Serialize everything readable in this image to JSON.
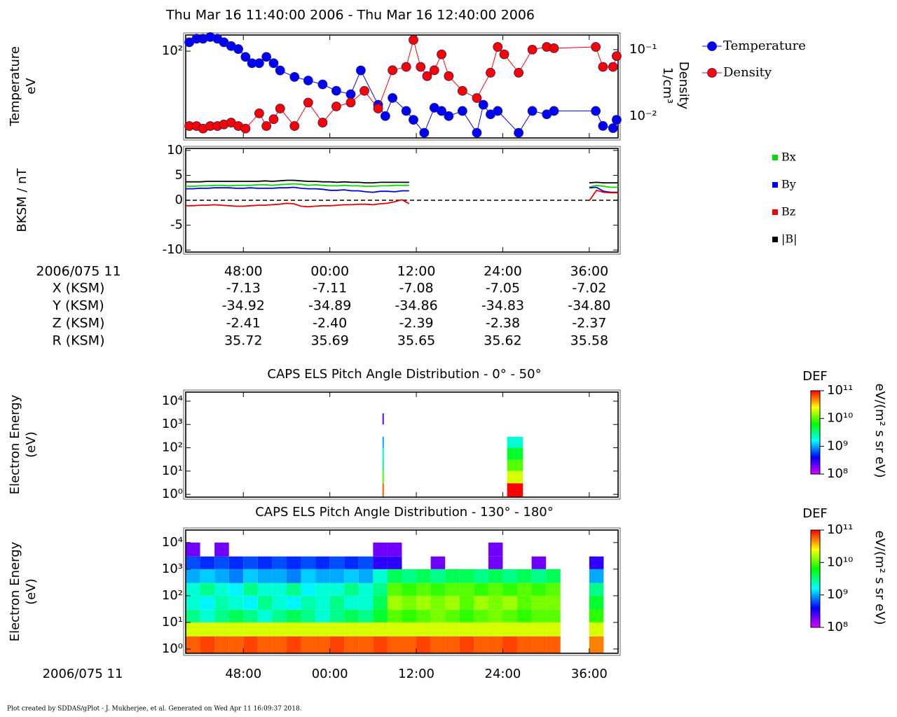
{
  "title": "Thu Mar 16 11:40:00 2006 - Thu Mar 16 12:40:00 2006",
  "footer": "Plot created by SDDAS/gPlot - J. Mukherjee, et al.  Generated on Wed Apr 11 16:09:37 2018.",
  "ephemeris": {
    "time_label": "2006/075 11",
    "times": [
      "48:00",
      "00:00",
      "12:00",
      "24:00",
      "36:00"
    ],
    "rows": [
      {
        "label": "X (KSM)",
        "values": [
          "-7.13",
          "-7.11",
          "-7.08",
          "-7.05",
          "-7.02"
        ]
      },
      {
        "label": "Y (KSM)",
        "values": [
          "-34.92",
          "-34.89",
          "-34.86",
          "-34.83",
          "-34.80"
        ]
      },
      {
        "label": "Z (KSM)",
        "values": [
          "-2.41",
          "-2.40",
          "-2.39",
          "-2.38",
          "-2.37"
        ]
      },
      {
        "label": "R (KSM)",
        "values": [
          "35.72",
          "35.69",
          "35.65",
          "35.62",
          "35.58"
        ]
      }
    ]
  },
  "chart_data": [
    {
      "type": "line",
      "markers": true,
      "ylabel": "Temperature",
      "yunit": "eV",
      "y2label": "Density",
      "y2unit": "1/cm³",
      "xlim": [
        0,
        60
      ],
      "xticks": [
        8,
        20,
        32,
        44,
        56
      ],
      "ylim": [
        20,
        135
      ],
      "log_y": true,
      "yticks": [
        {
          "value": 100,
          "label": "10²"
        }
      ],
      "y2lim": [
        0.0047,
        0.166
      ],
      "log_y2": true,
      "y2ticks": [
        {
          "value": 0.1,
          "label": "10⁻¹"
        },
        {
          "value": 0.01,
          "label": "10⁻²"
        }
      ],
      "series": [
        {
          "name": "Temperature",
          "color": "#0000ff",
          "x": [
            0.5,
            1.5,
            2.4,
            3.4,
            4.4,
            5.3,
            6.3,
            7.3,
            8.3,
            9.2,
            10.2,
            11.2,
            12.2,
            13.1,
            15.1,
            17.0,
            19.0,
            20.9,
            22.9,
            24.3,
            26.7,
            27.7,
            28.7,
            30.6,
            31.6,
            33.1,
            34.5,
            35.5,
            36.5,
            38.4,
            40.4,
            41.3,
            42.3,
            43.3,
            46.2,
            48.1,
            50.1,
            51.1,
            56.9,
            57.9,
            59.3,
            59.8
          ],
          "values": [
            118,
            126,
            126,
            130,
            126,
            118,
            110,
            104,
            90,
            80,
            80,
            90,
            80,
            70,
            62,
            58,
            54,
            48,
            45,
            70,
            37,
            30,
            42,
            33,
            28,
            22,
            35,
            33,
            30,
            33,
            22,
            37,
            31,
            33,
            22,
            33,
            31,
            33,
            33,
            25,
            24,
            28
          ]
        },
        {
          "name": "Density",
          "color": "#ff0000",
          "axis": "y2",
          "x": [
            0.5,
            1.5,
            2.4,
            3.4,
            4.4,
            5.3,
            6.3,
            7.3,
            8.3,
            10.2,
            11.2,
            12.2,
            13.1,
            15.1,
            17.0,
            19.0,
            20.9,
            22.9,
            24.8,
            26.7,
            28.7,
            30.6,
            31.6,
            32.6,
            33.5,
            34.5,
            35.5,
            36.5,
            38.4,
            40.4,
            42.3,
            43.3,
            44.2,
            46.2,
            48.1,
            50.1,
            51.1,
            56.9,
            57.9,
            59.3,
            59.8
          ],
          "values": [
            0.0071,
            0.0071,
            0.0065,
            0.0071,
            0.0071,
            0.0075,
            0.008,
            0.0071,
            0.0065,
            0.011,
            0.0071,
            0.009,
            0.013,
            0.0071,
            0.016,
            0.008,
            0.014,
            0.016,
            0.024,
            0.013,
            0.049,
            0.055,
            0.14,
            0.055,
            0.04,
            0.049,
            0.085,
            0.04,
            0.024,
            0.0187,
            0.045,
            0.11,
            0.085,
            0.045,
            0.1,
            0.11,
            0.105,
            0.11,
            0.055,
            0.055,
            0.08
          ]
        }
      ]
    },
    {
      "type": "line",
      "ylabel": "BKSM / nT",
      "zero_line": true,
      "xlim": [
        0,
        60
      ],
      "xticks": [
        8,
        20,
        32,
        44,
        56
      ],
      "ylim": [
        -10.4,
        10.4
      ],
      "yticks": [
        10,
        5,
        0,
        -5,
        -10
      ],
      "x": [
        0,
        1,
        2,
        3,
        4,
        5,
        6,
        7,
        8,
        9,
        10,
        11,
        12,
        13,
        14,
        15,
        16,
        17,
        18,
        19,
        20,
        21,
        22,
        23,
        24,
        25,
        26,
        27,
        28,
        29,
        30,
        31,
        44,
        56,
        57,
        58,
        59,
        60
      ],
      "series": [
        {
          "name": "Bx",
          "color": "#00dd00",
          "values": [
            2.8,
            2.8,
            2.9,
            2.9,
            3.0,
            3.0,
            2.9,
            3.0,
            3.0,
            3.0,
            3.1,
            3.1,
            3.0,
            3.1,
            3.2,
            3.3,
            3.2,
            3.0,
            3.1,
            3.0,
            2.9,
            2.9,
            3.0,
            2.9,
            2.9,
            2.8,
            2.8,
            2.9,
            2.9,
            3.0,
            3.0,
            3.0,
            null,
            2.6,
            3.0,
            2.8,
            2.6,
            2.6
          ]
        },
        {
          "name": "By",
          "color": "#0000ee",
          "values": [
            2.3,
            2.3,
            2.4,
            2.4,
            2.5,
            2.5,
            2.5,
            2.4,
            2.4,
            2.5,
            2.4,
            2.4,
            2.4,
            2.5,
            2.5,
            2.6,
            2.4,
            2.3,
            2.3,
            2.2,
            2.0,
            2.0,
            2.1,
            1.9,
            1.9,
            1.7,
            1.6,
            1.8,
            1.8,
            1.7,
            1.9,
            1.9,
            null,
            2.5,
            2.6,
            1.8,
            1.6,
            1.6
          ]
        },
        {
          "name": "Bz",
          "color": "#ee0000",
          "values": [
            -1.1,
            -1.1,
            -1.0,
            -1.0,
            -0.9,
            -1.0,
            -1.1,
            -1.2,
            -1.2,
            -1.1,
            -1.0,
            -1.0,
            -0.9,
            -0.8,
            -0.6,
            -0.7,
            -1.2,
            -1.3,
            -1.2,
            -1.1,
            -1.1,
            -1.0,
            -0.9,
            -0.9,
            -0.8,
            -0.8,
            -0.9,
            -0.7,
            -0.6,
            -0.3,
            0.1,
            -0.7,
            null,
            -0.1,
            2.0,
            1.6,
            1.5,
            1.5
          ]
        },
        {
          "name": "|B|",
          "color": "#000000",
          "values": [
            3.7,
            3.7,
            3.7,
            3.8,
            3.8,
            3.8,
            3.8,
            3.8,
            3.8,
            3.8,
            3.8,
            3.9,
            3.8,
            3.9,
            4.0,
            4.0,
            3.9,
            3.8,
            3.8,
            3.7,
            3.7,
            3.6,
            3.7,
            3.6,
            3.6,
            3.5,
            3.5,
            3.6,
            3.6,
            3.6,
            3.6,
            3.6,
            null,
            3.5,
            3.6,
            3.5,
            3.5,
            3.5
          ]
        }
      ]
    },
    {
      "type": "heatmap",
      "title": "CAPS ELS Pitch Angle Distribution - 0° - 50°",
      "ylabel": "Electron Energy",
      "yunit": "(eV)",
      "clabel": "DEF",
      "cunit": "eV/(m² s sr eV)",
      "xlim": [
        0,
        60
      ],
      "xticks": [
        8,
        20,
        32,
        44,
        56
      ],
      "ylim": [
        0.76,
        24500
      ],
      "log_y": true,
      "yticks": [
        {
          "value": 1,
          "label": "10⁰"
        },
        {
          "value": 10,
          "label": "10¹"
        },
        {
          "value": 100,
          "label": "10²"
        },
        {
          "value": 1000,
          "label": "10³"
        },
        {
          "value": 10000,
          "label": "10⁴"
        }
      ],
      "clim": [
        100000000.0,
        100000000000.0
      ],
      "cticks": [
        {
          "value": 100000000000.0,
          "label": "10¹¹"
        },
        {
          "value": 10000000000.0,
          "label": "10¹⁰"
        },
        {
          "value": 1000000000.0,
          "label": "10⁹"
        },
        {
          "value": 100000000.0,
          "label": "10⁸"
        }
      ],
      "colormap": [
        "#e000ff",
        "#0000ff",
        "#00ffff",
        "#00ff00",
        "#ffff00",
        "#ff0000"
      ],
      "time_bins": [
        27.3,
        27.5,
        44.6,
        46.8
      ],
      "energy_bins": [
        0.7,
        3,
        10,
        30,
        100,
        300,
        1000,
        3000,
        10000
      ],
      "z": [
        [
          60000000000.0,
          null,
          100000000000.0
        ],
        [
          10000000000.0,
          null,
          20000000000.0
        ],
        [
          3000000000.0,
          null,
          10000000000.0
        ],
        [
          2000000000.0,
          null,
          5000000000.0
        ],
        [
          1000000000.0,
          null,
          2000000000.0
        ],
        [
          null,
          null,
          null
        ],
        [
          200000000.0,
          null,
          null
        ],
        [
          null,
          null,
          null
        ]
      ]
    },
    {
      "type": "heatmap",
      "title": "CAPS ELS Pitch Angle Distribution - 130° - 180°",
      "ylabel": "Electron Energy",
      "yunit": "(eV)",
      "clabel": "DEF",
      "cunit": "eV/(m² s sr eV)",
      "xlabel": "2006/075 11",
      "xlim": [
        0,
        60
      ],
      "xticks": [
        {
          "value": 8,
          "label": "48:00"
        },
        {
          "value": 20,
          "label": "00:00"
        },
        {
          "value": 32,
          "label": "12:00"
        },
        {
          "value": 44,
          "label": "24:00"
        },
        {
          "value": 56,
          "label": "36:00"
        }
      ],
      "ylim": [
        0.69,
        29500
      ],
      "log_y": true,
      "yticks": [
        {
          "value": 1,
          "label": "10⁰"
        },
        {
          "value": 10,
          "label": "10¹"
        },
        {
          "value": 100,
          "label": "10²"
        },
        {
          "value": 1000,
          "label": "10³"
        },
        {
          "value": 10000,
          "label": "10⁴"
        }
      ],
      "clim": [
        100000000.0,
        100000000000.0
      ],
      "cticks": [
        {
          "value": 100000000000.0,
          "label": "10¹¹"
        },
        {
          "value": 10000000000.0,
          "label": "10¹⁰"
        },
        {
          "value": 1000000000.0,
          "label": "10⁹"
        },
        {
          "value": 100000000.0,
          "label": "10⁸"
        }
      ],
      "colormap": [
        "#e000ff",
        "#0000ff",
        "#00ffff",
        "#00ff00",
        "#ffff00",
        "#ff0000"
      ],
      "time_bins": [
        0,
        2,
        4,
        6,
        8,
        10,
        12,
        14,
        16,
        18,
        20,
        22,
        24,
        26,
        28,
        30,
        32,
        34,
        36,
        38,
        40,
        42,
        44,
        46,
        48,
        50,
        52,
        54,
        56,
        58,
        60
      ],
      "energy_bins": [
        0.7,
        3,
        10,
        30,
        100,
        300,
        1000,
        3000,
        10000
      ],
      "z": [
        [
          60000000000.0,
          70000000000.0,
          60000000000.0,
          60000000000.0,
          70000000000.0,
          60000000000.0,
          60000000000.0,
          70000000000.0,
          60000000000.0,
          60000000000.0,
          70000000000.0,
          60000000000.0,
          60000000000.0,
          70000000000.0,
          60000000000.0,
          60000000000.0,
          70000000000.0,
          60000000000.0,
          60000000000.0,
          70000000000.0,
          60000000000.0,
          60000000000.0,
          70000000000.0,
          60000000000.0,
          60000000000.0,
          60000000000.0,
          null,
          null,
          50000000000.0,
          null
        ],
        [
          20000000000.0,
          20000000000.0,
          20000000000.0,
          20000000000.0,
          20000000000.0,
          20000000000.0,
          20000000000.0,
          20000000000.0,
          20000000000.0,
          20000000000.0,
          20000000000.0,
          20000000000.0,
          20000000000.0,
          20000000000.0,
          20000000000.0,
          20000000000.0,
          20000000000.0,
          20000000000.0,
          20000000000.0,
          20000000000.0,
          20000000000.0,
          20000000000.0,
          20000000000.0,
          20000000000.0,
          20000000000.0,
          20000000000.0,
          null,
          null,
          20000000000.0,
          null
        ],
        [
          3000000000.0,
          2000000000.0,
          3000000000.0,
          4000000000.0,
          3000000000.0,
          2000000000.0,
          3000000000.0,
          4000000000.0,
          3000000000.0,
          2000000000.0,
          3000000000.0,
          4000000000.0,
          3000000000.0,
          5000000000.0,
          10000000000.0,
          8000000000.0,
          10000000000.0,
          12000000000.0,
          10000000000.0,
          8000000000.0,
          10000000000.0,
          12000000000.0,
          10000000000.0,
          8000000000.0,
          10000000000.0,
          10000000000.0,
          null,
          null,
          8000000000.0,
          null
        ],
        [
          2000000000.0,
          1500000000.0,
          2500000000.0,
          2000000000.0,
          1500000000.0,
          3000000000.0,
          2000000000.0,
          1500000000.0,
          2500000000.0,
          2000000000.0,
          3000000000.0,
          2000000000.0,
          2000000000.0,
          4000000000.0,
          15000000000.0,
          12000000000.0,
          15000000000.0,
          12000000000.0,
          15000000000.0,
          10000000000.0,
          15000000000.0,
          12000000000.0,
          15000000000.0,
          10000000000.0,
          12000000000.0,
          12000000000.0,
          null,
          null,
          5000000000.0,
          null
        ],
        [
          2000000000.0,
          3000000000.0,
          2000000000.0,
          1500000000.0,
          3000000000.0,
          2000000000.0,
          2000000000.0,
          3000000000.0,
          1500000000.0,
          2000000000.0,
          2000000000.0,
          3000000000.0,
          2000000000.0,
          3000000000.0,
          10000000000.0,
          8000000000.0,
          10000000000.0,
          8000000000.0,
          10000000000.0,
          10000000000.0,
          8000000000.0,
          10000000000.0,
          8000000000.0,
          10000000000.0,
          8000000000.0,
          10000000000.0,
          null,
          null,
          3000000000.0,
          null
        ],
        [
          1000000000.0,
          1200000000.0,
          1000000000.0,
          800000000.0,
          1200000000.0,
          1000000000.0,
          1000000000.0,
          800000000.0,
          1200000000.0,
          1000000000.0,
          1000000000.0,
          1200000000.0,
          1000000000.0,
          2000000000.0,
          4000000000.0,
          3000000000.0,
          4000000000.0,
          3000000000.0,
          4000000000.0,
          4000000000.0,
          3000000000.0,
          4000000000.0,
          3000000000.0,
          4000000000.0,
          3000000000.0,
          4000000000.0,
          null,
          null,
          1000000000.0,
          null
        ],
        [
          600000000.0,
          500000000.0,
          600000000.0,
          500000000.0,
          600000000.0,
          500000000.0,
          600000000.0,
          500000000.0,
          600000000.0,
          500000000.0,
          600000000.0,
          500000000.0,
          600000000.0,
          300000000.0,
          300000000.0,
          null,
          null,
          200000000.0,
          null,
          null,
          null,
          200000000.0,
          null,
          null,
          200000000.0,
          null,
          null,
          null,
          300000000.0,
          null
        ],
        [
          200000000.0,
          null,
          200000000.0,
          null,
          null,
          null,
          null,
          null,
          null,
          null,
          null,
          null,
          null,
          200000000.0,
          200000000.0,
          null,
          null,
          null,
          null,
          null,
          null,
          200000000.0,
          null,
          null,
          null,
          null,
          null,
          null,
          null,
          null
        ]
      ]
    }
  ]
}
